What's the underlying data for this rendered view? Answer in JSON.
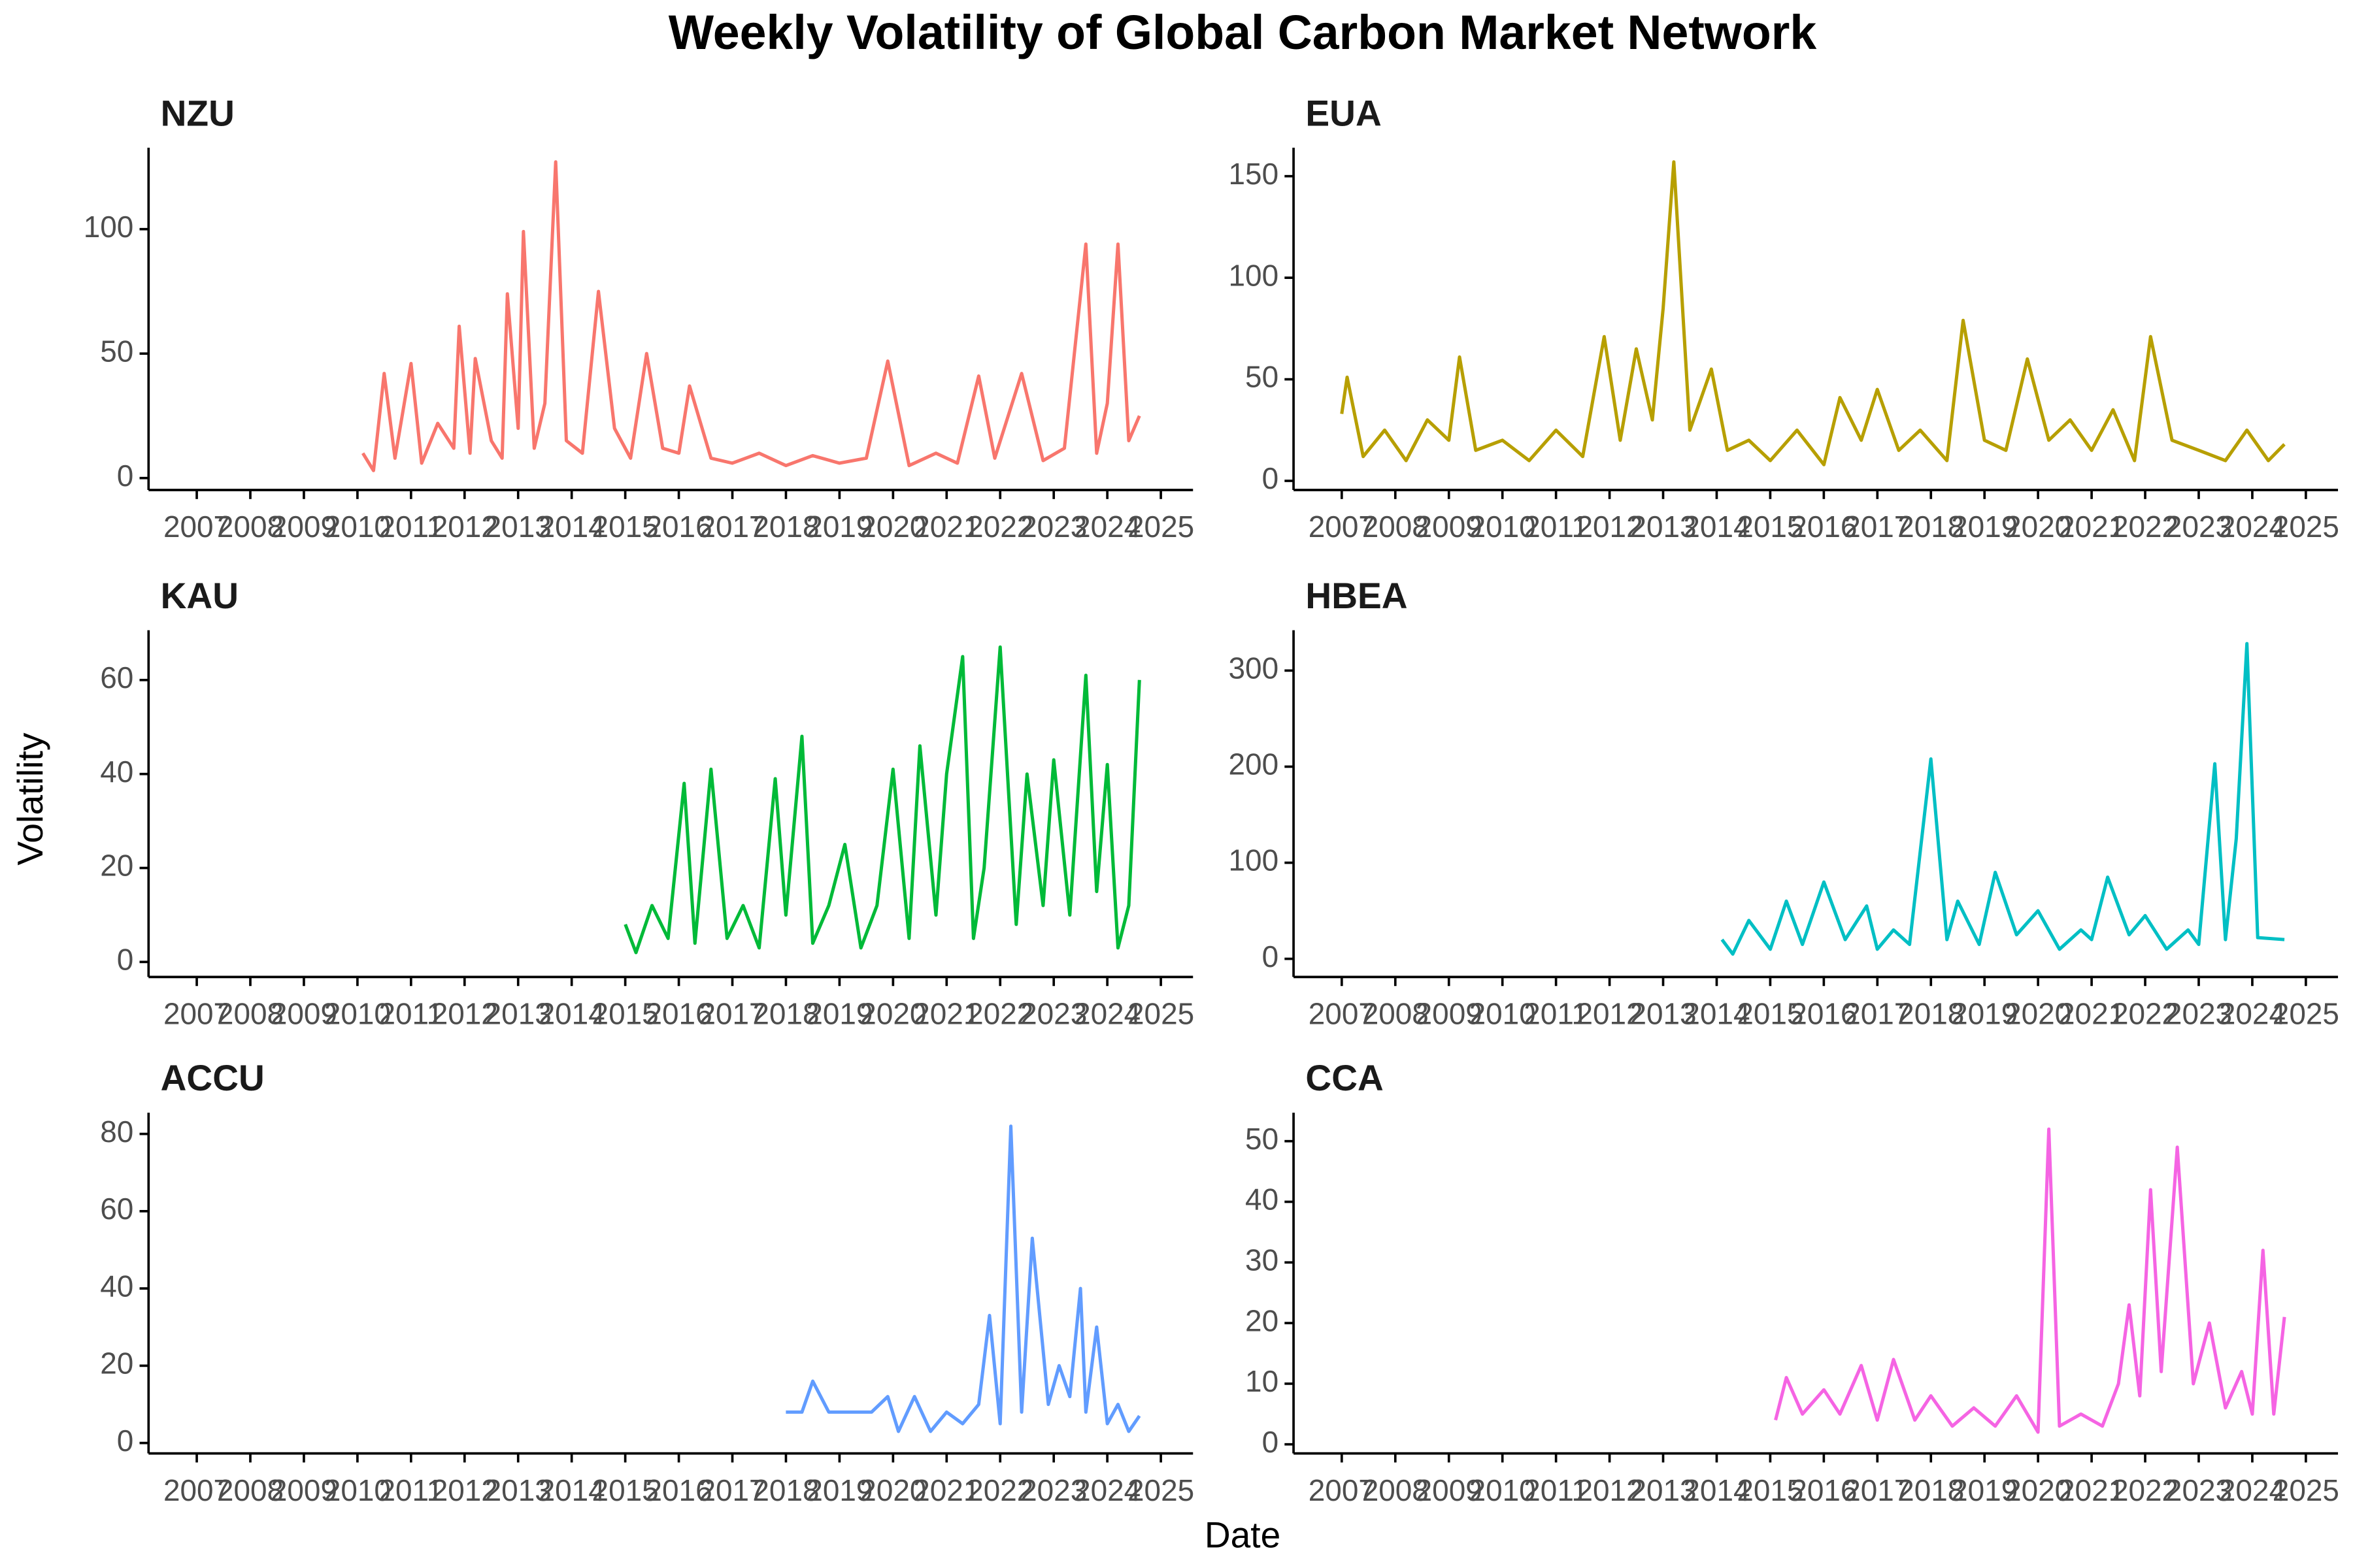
{
  "title": "Weekly Volatility of Global Carbon Market Network",
  "x_label": "Date",
  "y_label": "Volatility",
  "chart_data": [
    {
      "type": "line",
      "title": "NZU",
      "color": "#F8766D",
      "x": [
        2010.1,
        2010.3,
        2010.5,
        2010.7,
        2011.0,
        2011.2,
        2011.5,
        2011.8,
        2011.9,
        2012.1,
        2012.2,
        2012.5,
        2012.7,
        2012.8,
        2013.0,
        2013.1,
        2013.3,
        2013.5,
        2013.7,
        2013.9,
        2014.2,
        2014.5,
        2014.8,
        2015.1,
        2015.4,
        2015.7,
        2016.0,
        2016.2,
        2016.6,
        2017.0,
        2017.5,
        2018.0,
        2018.5,
        2019.0,
        2019.5,
        2019.9,
        2020.3,
        2020.8,
        2021.2,
        2021.6,
        2021.9,
        2022.4,
        2022.8,
        2023.2,
        2023.6,
        2023.8,
        2024.0,
        2024.2,
        2024.4,
        2024.6
      ],
      "values": [
        10,
        3,
        42,
        8,
        46,
        6,
        22,
        12,
        61,
        10,
        48,
        15,
        8,
        74,
        20,
        99,
        12,
        30,
        127,
        15,
        10,
        75,
        20,
        8,
        50,
        12,
        10,
        37,
        8,
        6,
        10,
        5,
        9,
        6,
        8,
        47,
        5,
        10,
        6,
        41,
        8,
        42,
        7,
        12,
        94,
        10,
        30,
        94,
        15,
        25
      ],
      "xlim": [
        2006.1,
        2025.6
      ],
      "xticks": [
        2007,
        2008,
        2009,
        2010,
        2011,
        2012,
        2013,
        2014,
        2015,
        2016,
        2017,
        2018,
        2019,
        2020,
        2021,
        2022,
        2023,
        2024,
        2025
      ],
      "ylim": [
        -4.8,
        132.7
      ],
      "yticks": [
        0,
        50,
        100
      ]
    },
    {
      "type": "line",
      "title": "EUA",
      "color": "#B79F00",
      "x": [
        2007.0,
        2007.1,
        2007.4,
        2007.8,
        2008.2,
        2008.6,
        2009.0,
        2009.2,
        2009.5,
        2010.0,
        2010.5,
        2011.0,
        2011.5,
        2011.9,
        2012.2,
        2012.5,
        2012.8,
        2013.0,
        2013.2,
        2013.5,
        2013.9,
        2014.2,
        2014.6,
        2015.0,
        2015.5,
        2016.0,
        2016.3,
        2016.7,
        2017.0,
        2017.4,
        2017.8,
        2018.3,
        2018.6,
        2019.0,
        2019.4,
        2019.8,
        2020.2,
        2020.6,
        2021.0,
        2021.4,
        2021.8,
        2022.1,
        2022.5,
        2023.0,
        2023.5,
        2023.9,
        2024.3,
        2024.6
      ],
      "values": [
        33,
        51,
        12,
        25,
        10,
        30,
        20,
        61,
        15,
        20,
        10,
        25,
        12,
        71,
        20,
        65,
        30,
        85,
        157,
        25,
        55,
        15,
        20,
        10,
        25,
        8,
        41,
        20,
        45,
        15,
        25,
        10,
        79,
        20,
        15,
        60,
        20,
        30,
        15,
        35,
        10,
        71,
        20,
        15,
        10,
        25,
        10,
        18
      ],
      "xlim": [
        2006.1,
        2025.6
      ],
      "xticks": [
        2007,
        2008,
        2009,
        2010,
        2011,
        2012,
        2013,
        2014,
        2015,
        2016,
        2017,
        2018,
        2019,
        2020,
        2021,
        2022,
        2023,
        2024,
        2025
      ],
      "ylim": [
        -4.5,
        164
      ],
      "yticks": [
        0,
        50,
        100,
        150
      ]
    },
    {
      "type": "line",
      "title": "KAU",
      "color": "#00BA38",
      "x": [
        2015.0,
        2015.2,
        2015.5,
        2015.8,
        2016.1,
        2016.3,
        2016.6,
        2016.9,
        2017.2,
        2017.5,
        2017.8,
        2018.0,
        2018.3,
        2018.5,
        2018.8,
        2019.1,
        2019.4,
        2019.7,
        2020.0,
        2020.3,
        2020.5,
        2020.8,
        2021.0,
        2021.3,
        2021.5,
        2021.7,
        2022.0,
        2022.3,
        2022.5,
        2022.8,
        2023.0,
        2023.3,
        2023.6,
        2023.8,
        2024.0,
        2024.2,
        2024.4,
        2024.6
      ],
      "values": [
        8,
        2,
        12,
        5,
        38,
        4,
        41,
        5,
        12,
        3,
        39,
        10,
        48,
        4,
        12,
        25,
        3,
        12,
        41,
        5,
        46,
        10,
        40,
        65,
        5,
        20,
        67,
        8,
        40,
        12,
        43,
        10,
        61,
        15,
        42,
        3,
        12,
        60
      ],
      "xlim": [
        2006.1,
        2025.6
      ],
      "xticks": [
        2007,
        2008,
        2009,
        2010,
        2011,
        2012,
        2013,
        2014,
        2015,
        2016,
        2017,
        2018,
        2019,
        2020,
        2021,
        2022,
        2023,
        2024,
        2025
      ],
      "ylim": [
        -3.2,
        70.6
      ],
      "yticks": [
        0,
        20,
        40,
        60
      ]
    },
    {
      "type": "line",
      "title": "HBEA",
      "color": "#00BFC4",
      "x": [
        2014.1,
        2014.3,
        2014.6,
        2015.0,
        2015.3,
        2015.6,
        2016.0,
        2016.4,
        2016.8,
        2017.0,
        2017.3,
        2017.6,
        2018.0,
        2018.3,
        2018.5,
        2018.9,
        2019.2,
        2019.6,
        2020.0,
        2020.4,
        2020.8,
        2021.0,
        2021.3,
        2021.7,
        2022.0,
        2022.4,
        2022.8,
        2023.0,
        2023.3,
        2023.5,
        2023.7,
        2023.9,
        2024.1,
        2024.6
      ],
      "values": [
        20,
        5,
        40,
        10,
        60,
        15,
        80,
        20,
        55,
        10,
        30,
        15,
        208,
        20,
        60,
        15,
        90,
        25,
        50,
        10,
        30,
        20,
        85,
        25,
        45,
        10,
        30,
        15,
        203,
        20,
        125,
        328,
        22,
        20
      ],
      "xlim": [
        2006.1,
        2025.6
      ],
      "xticks": [
        2007,
        2008,
        2009,
        2010,
        2011,
        2012,
        2013,
        2014,
        2015,
        2016,
        2017,
        2018,
        2019,
        2020,
        2021,
        2022,
        2023,
        2024,
        2025
      ],
      "ylim": [
        -18.9,
        342
      ],
      "yticks": [
        0,
        100,
        200,
        300
      ]
    },
    {
      "type": "line",
      "title": "ACCU",
      "color": "#619CFF",
      "x": [
        2018.0,
        2018.3,
        2018.5,
        2018.8,
        2019.2,
        2019.6,
        2019.9,
        2020.1,
        2020.4,
        2020.7,
        2021.0,
        2021.3,
        2021.6,
        2021.8,
        2022.0,
        2022.2,
        2022.4,
        2022.6,
        2022.9,
        2023.1,
        2023.3,
        2023.5,
        2023.6,
        2023.8,
        2024.0,
        2024.2,
        2024.4,
        2024.6
      ],
      "values": [
        8,
        8,
        16,
        8,
        8,
        8,
        12,
        3,
        12,
        3,
        8,
        5,
        10,
        33,
        5,
        82,
        8,
        53,
        10,
        20,
        12,
        40,
        8,
        30,
        5,
        10,
        3,
        7
      ],
      "xlim": [
        2006.1,
        2025.6
      ],
      "xticks": [
        2007,
        2008,
        2009,
        2010,
        2011,
        2012,
        2013,
        2014,
        2015,
        2016,
        2017,
        2018,
        2019,
        2020,
        2021,
        2022,
        2023,
        2024,
        2025
      ],
      "ylim": [
        -2.7,
        85.5
      ],
      "yticks": [
        0,
        20,
        40,
        60,
        80
      ]
    },
    {
      "type": "line",
      "title": "CCA",
      "color": "#F564E3",
      "x": [
        2015.1,
        2015.3,
        2015.6,
        2016.0,
        2016.3,
        2016.7,
        2017.0,
        2017.3,
        2017.7,
        2018.0,
        2018.4,
        2018.8,
        2019.2,
        2019.6,
        2020.0,
        2020.2,
        2020.4,
        2020.8,
        2021.2,
        2021.5,
        2021.7,
        2021.9,
        2022.1,
        2022.3,
        2022.6,
        2022.9,
        2023.2,
        2023.5,
        2023.8,
        2024.0,
        2024.2,
        2024.4,
        2024.6
      ],
      "values": [
        4,
        11,
        5,
        9,
        5,
        13,
        4,
        14,
        4,
        8,
        3,
        6,
        3,
        8,
        2,
        52,
        3,
        5,
        3,
        10,
        23,
        8,
        42,
        12,
        49,
        10,
        20,
        6,
        12,
        5,
        32,
        5,
        21
      ],
      "xlim": [
        2006.1,
        2025.6
      ],
      "xticks": [
        2007,
        2008,
        2009,
        2010,
        2011,
        2012,
        2013,
        2014,
        2015,
        2016,
        2017,
        2018,
        2019,
        2020,
        2021,
        2022,
        2023,
        2024,
        2025
      ],
      "ylim": [
        -1.5,
        54.7
      ],
      "yticks": [
        0,
        10,
        20,
        30,
        40,
        50
      ]
    }
  ]
}
